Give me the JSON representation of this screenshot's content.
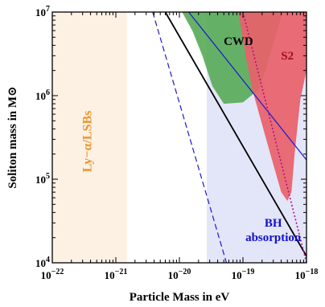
{
  "chart_data": {
    "type": "area",
    "xlabel": "Particle Mass in eV",
    "ylabel": "Soliton mass in M⊙",
    "xscale": "log",
    "yscale": "log",
    "xlim": [
      1e-22,
      1e-18
    ],
    "ylim": [
      10000,
      10000000
    ],
    "xticks": [
      {
        "value": 1e-22,
        "base": "10",
        "exp": "−22"
      },
      {
        "value": 1e-21,
        "base": "10",
        "exp": "−21"
      },
      {
        "value": 1e-20,
        "base": "10",
        "exp": "−20"
      },
      {
        "value": 1e-19,
        "base": "10",
        "exp": "−19"
      },
      {
        "value": 1e-18,
        "base": "10",
        "exp": "−18"
      }
    ],
    "yticks": [
      {
        "value": 10000,
        "base": "10",
        "exp": "4"
      },
      {
        "value": 100000,
        "base": "10",
        "exp": "5"
      },
      {
        "value": 1000000,
        "base": "10",
        "exp": "6"
      },
      {
        "value": 10000000,
        "base": "10",
        "exp": "7"
      }
    ],
    "regions": [
      {
        "label": "Ly−α/LSBs",
        "color": "#fdf1e3",
        "label_color": "#f0932b",
        "x_range": [
          1e-22,
          1.5e-21
        ],
        "y_range": [
          10000,
          10000000
        ]
      },
      {
        "label": "BH absorption",
        "color": "#e3e5f8",
        "label_color": "#1010cc",
        "x_range": [
          2.7e-20,
          1e-18
        ],
        "y_range": [
          10000,
          10000000
        ]
      },
      {
        "label": "CWD",
        "color": "#5aab5a",
        "polygon": [
          [
            1.1e-20,
            10000000
          ],
          [
            4.2e-19,
            10000000
          ],
          [
            2.3e-19,
            2100000
          ],
          [
            1.8e-19,
            1200000
          ],
          [
            1e-19,
            830000
          ],
          [
            5e-20,
            800000
          ],
          [
            3.3e-20,
            1300000
          ],
          [
            2.3e-20,
            3000000
          ],
          [
            1.6e-20,
            6000000
          ]
        ]
      },
      {
        "label": "S2",
        "color": "#e8616a",
        "polygon": [
          [
            8.5e-20,
            10000000
          ],
          [
            1e-18,
            10000000
          ],
          [
            1e-18,
            2000000
          ],
          [
            8e-19,
            900000
          ],
          [
            6.5e-19,
            200000
          ],
          [
            5.8e-19,
            70000
          ],
          [
            5e-19,
            55000
          ],
          [
            4e-19,
            70000
          ],
          [
            2.7e-19,
            200000
          ],
          [
            1.9e-19,
            520000
          ],
          [
            1.4e-19,
            1200000
          ],
          [
            1.1e-19,
            3000000
          ],
          [
            9.5e-20,
            6000000
          ]
        ]
      }
    ],
    "series": [
      {
        "style": "solid",
        "color": "#000000",
        "x": [
          6e-21,
          1e-18
        ],
        "y": [
          10000000,
          12000
        ]
      },
      {
        "style": "solid",
        "color": "#1a1acc",
        "x": [
          1.4e-20,
          1e-18
        ],
        "y": [
          10000000,
          170000
        ]
      },
      {
        "style": "dashed",
        "color": "#1a1acc",
        "x": [
          3.8e-21,
          5.5e-20
        ],
        "y": [
          10000000,
          10000
        ]
      },
      {
        "style": "dotted",
        "color": "#b0108a",
        "x": [
          1e-19,
          1e-18
        ],
        "y": [
          10000000,
          10000
        ]
      }
    ]
  }
}
